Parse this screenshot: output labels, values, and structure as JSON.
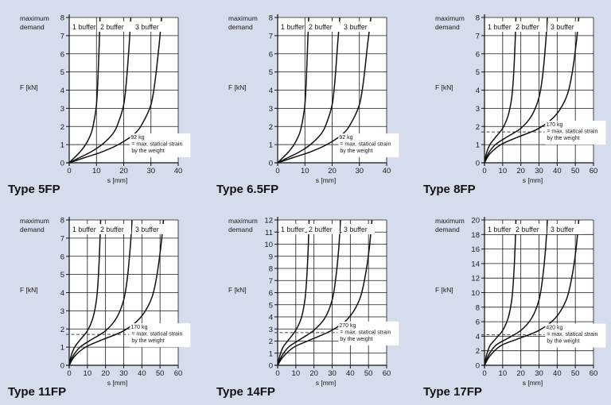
{
  "chart_data": [
    {
      "type": "line",
      "title": "Type 5FP",
      "demand_label": [
        "maximum",
        "demand"
      ],
      "ylabel": "F [kN]",
      "xlabel": "s [mm]",
      "xlim": [
        0,
        40
      ],
      "ylim": [
        0,
        8
      ],
      "x_ticks": [
        0,
        10,
        20,
        30,
        40
      ],
      "y_ticks": [
        0,
        1,
        2,
        3,
        4,
        5,
        6,
        7,
        8
      ],
      "grid": true,
      "series": [
        {
          "name": "1 buffer",
          "x": [
            0,
            2,
            4,
            6,
            8,
            9,
            10,
            10.5,
            11,
            11.3
          ],
          "y": [
            0,
            0.3,
            0.6,
            1.0,
            1.6,
            2.2,
            3.2,
            4.5,
            6.5,
            8
          ]
        },
        {
          "name": "2 buffer",
          "x": [
            0,
            4,
            8,
            12,
            16,
            18,
            20,
            21,
            22,
            22.6
          ],
          "y": [
            0,
            0.3,
            0.6,
            1.0,
            1.6,
            2.2,
            3.2,
            4.5,
            6.5,
            8
          ]
        },
        {
          "name": "3 buffer",
          "x": [
            0,
            6,
            12,
            18,
            24,
            27,
            30,
            31.5,
            33,
            33.9
          ],
          "y": [
            0,
            0.3,
            0.6,
            1.0,
            1.6,
            2.2,
            3.2,
            4.5,
            6.5,
            8
          ]
        }
      ],
      "reference_line": {
        "y": 1.0
      },
      "annotation": [
        "92 kg",
        "= max. statical strain",
        "by the weight"
      ]
    },
    {
      "type": "line",
      "title": "Type 6.5FP",
      "demand_label": [
        "maximum",
        "demand"
      ],
      "ylabel": "F [kN]",
      "xlabel": "s [mm]",
      "xlim": [
        0,
        40
      ],
      "ylim": [
        0,
        8
      ],
      "x_ticks": [
        0,
        10,
        20,
        30,
        40
      ],
      "y_ticks": [
        0,
        1,
        2,
        3,
        4,
        5,
        6,
        7,
        8
      ],
      "grid": true,
      "series": [
        {
          "name": "1 buffer",
          "x": [
            0,
            2,
            4,
            6,
            8,
            9,
            10,
            10.5,
            11,
            11.4
          ],
          "y": [
            0,
            0.3,
            0.6,
            1.0,
            1.6,
            2.2,
            3.2,
            4.5,
            6.5,
            8
          ]
        },
        {
          "name": "2 buffer",
          "x": [
            0,
            4,
            8,
            12,
            16,
            18,
            20,
            21,
            22,
            22.8
          ],
          "y": [
            0,
            0.3,
            0.6,
            1.0,
            1.6,
            2.2,
            3.2,
            4.5,
            6.5,
            8
          ]
        },
        {
          "name": "3 buffer",
          "x": [
            0,
            6,
            12,
            18,
            24,
            27,
            30,
            31.5,
            33,
            34.2
          ],
          "y": [
            0,
            0.3,
            0.6,
            1.0,
            1.6,
            2.2,
            3.2,
            4.5,
            6.5,
            8
          ]
        }
      ],
      "reference_line": {
        "y": 1.0
      },
      "annotation": [
        "92 kg",
        "= max. statical strain",
        "by the weight"
      ]
    },
    {
      "type": "line",
      "title": "Type 8FP",
      "demand_label": [
        "maximum",
        "demand"
      ],
      "ylabel": "F [kN]",
      "xlabel": "s [mm]",
      "xlim": [
        0,
        60
      ],
      "ylim": [
        0,
        8
      ],
      "x_ticks": [
        0,
        10,
        20,
        30,
        40,
        50,
        60
      ],
      "y_ticks": [
        0,
        1,
        2,
        3,
        4,
        5,
        6,
        7,
        8
      ],
      "grid": true,
      "series": [
        {
          "name": "1 buffer",
          "x": [
            0,
            1,
            3,
            6,
            10,
            13,
            15,
            16,
            16.8,
            17.3
          ],
          "y": [
            0,
            0.5,
            1.0,
            1.4,
            1.9,
            2.6,
            3.6,
            4.8,
            6.5,
            8
          ]
        },
        {
          "name": "2 buffer",
          "x": [
            0,
            2,
            6,
            12,
            20,
            26,
            30,
            32,
            33.6,
            34.6
          ],
          "y": [
            0,
            0.5,
            1.0,
            1.4,
            1.9,
            2.6,
            3.6,
            4.8,
            6.5,
            8
          ]
        },
        {
          "name": "3 buffer",
          "x": [
            0,
            3,
            9,
            18,
            30,
            39,
            45,
            48,
            50.4,
            51.9
          ],
          "y": [
            0,
            0.5,
            1.0,
            1.4,
            1.9,
            2.6,
            3.6,
            4.8,
            6.5,
            8
          ]
        }
      ],
      "reference_line": {
        "y": 1.7
      },
      "annotation": [
        "170 kg",
        "= max. statical strain",
        "by the weight"
      ]
    },
    {
      "type": "line",
      "title": "Type 11FP",
      "demand_label": [
        "maximum",
        "demand"
      ],
      "ylabel": "F [kN]",
      "xlabel": "s [mm]",
      "xlim": [
        0,
        60
      ],
      "ylim": [
        0,
        8
      ],
      "x_ticks": [
        0,
        10,
        20,
        30,
        40,
        50,
        60
      ],
      "y_ticks": [
        0,
        1,
        2,
        3,
        4,
        5,
        6,
        7,
        8
      ],
      "grid": true,
      "series": [
        {
          "name": "1 buffer",
          "x": [
            0,
            1,
            3,
            6,
            10,
            13,
            15,
            16,
            16.8,
            17.3
          ],
          "y": [
            0,
            0.5,
            1.0,
            1.4,
            1.9,
            2.6,
            3.6,
            4.8,
            6.5,
            8
          ]
        },
        {
          "name": "2 buffer",
          "x": [
            0,
            2,
            6,
            12,
            20,
            26,
            30,
            32,
            33.6,
            34.6
          ],
          "y": [
            0,
            0.5,
            1.0,
            1.4,
            1.9,
            2.6,
            3.6,
            4.8,
            6.5,
            8
          ]
        },
        {
          "name": "3 buffer",
          "x": [
            0,
            3,
            9,
            18,
            30,
            39,
            45,
            48,
            50.4,
            51.9
          ],
          "y": [
            0,
            0.5,
            1.0,
            1.4,
            1.9,
            2.6,
            3.6,
            4.8,
            6.5,
            8
          ]
        }
      ],
      "reference_line": {
        "y": 1.7
      },
      "annotation": [
        "170 kg",
        "= max. statical strain",
        "by the weight"
      ]
    },
    {
      "type": "line",
      "title": "Type 14FP",
      "demand_label": [
        "maximum",
        "demand"
      ],
      "ylabel": "F [kN]",
      "xlabel": "s [mm]",
      "xlim": [
        0,
        60
      ],
      "ylim": [
        0,
        12
      ],
      "x_ticks": [
        0,
        10,
        20,
        30,
        40,
        50,
        60
      ],
      "y_ticks": [
        0,
        1,
        2,
        3,
        4,
        5,
        6,
        7,
        8,
        9,
        10,
        11,
        12
      ],
      "grid": true,
      "series": [
        {
          "name": "1 buffer",
          "x": [
            0,
            1,
            3,
            6,
            10,
            13,
            15,
            16,
            16.8,
            17.3
          ],
          "y": [
            0,
            0.7,
            1.5,
            2.1,
            2.9,
            3.9,
            5.4,
            7.2,
            9.6,
            12
          ]
        },
        {
          "name": "2 buffer",
          "x": [
            0,
            2,
            6,
            12,
            20,
            26,
            30,
            32,
            33.6,
            34.6
          ],
          "y": [
            0,
            0.7,
            1.5,
            2.1,
            2.9,
            3.9,
            5.4,
            7.2,
            9.6,
            12
          ]
        },
        {
          "name": "3 buffer",
          "x": [
            0,
            3,
            9,
            18,
            30,
            39,
            45,
            48,
            50.4,
            51.9
          ],
          "y": [
            0,
            0.7,
            1.5,
            2.1,
            2.9,
            3.9,
            5.4,
            7.2,
            9.6,
            12
          ]
        }
      ],
      "reference_line": {
        "y": 2.7
      },
      "annotation": [
        "270 kg",
        "= max. statical strain",
        "by the weight"
      ]
    },
    {
      "type": "line",
      "title": "Type 17FP",
      "demand_label": [
        "maximum",
        "demand"
      ],
      "ylabel": "F [kN]",
      "xlabel": "s [mm]",
      "xlim": [
        0,
        60
      ],
      "ylim": [
        0,
        20
      ],
      "x_ticks": [
        0,
        10,
        20,
        30,
        40,
        50,
        60
      ],
      "y_ticks": [
        0,
        2,
        4,
        6,
        8,
        10,
        12,
        14,
        16,
        18,
        20
      ],
      "grid": true,
      "series": [
        {
          "name": "1 buffer",
          "x": [
            0,
            1,
            3,
            6,
            10,
            13,
            15,
            16,
            16.8,
            17.3
          ],
          "y": [
            0,
            1.3,
            2.7,
            3.6,
            4.8,
            6.5,
            9.0,
            12.0,
            16.0,
            20
          ]
        },
        {
          "name": "2 buffer",
          "x": [
            0,
            2,
            6,
            12,
            20,
            26,
            30,
            32,
            33.6,
            34.6
          ],
          "y": [
            0,
            1.3,
            2.7,
            3.6,
            4.8,
            6.5,
            9.0,
            12.0,
            16.0,
            20
          ]
        },
        {
          "name": "3 buffer",
          "x": [
            0,
            3,
            9,
            18,
            30,
            39,
            45,
            48,
            50.4,
            51.9
          ],
          "y": [
            0,
            1.3,
            2.7,
            3.6,
            4.8,
            6.5,
            9.0,
            12.0,
            16.0,
            20
          ]
        }
      ],
      "reference_line": {
        "y": 4.2
      },
      "annotation": [
        "420 kg",
        "= max. statical strain",
        "by the weight"
      ]
    }
  ]
}
